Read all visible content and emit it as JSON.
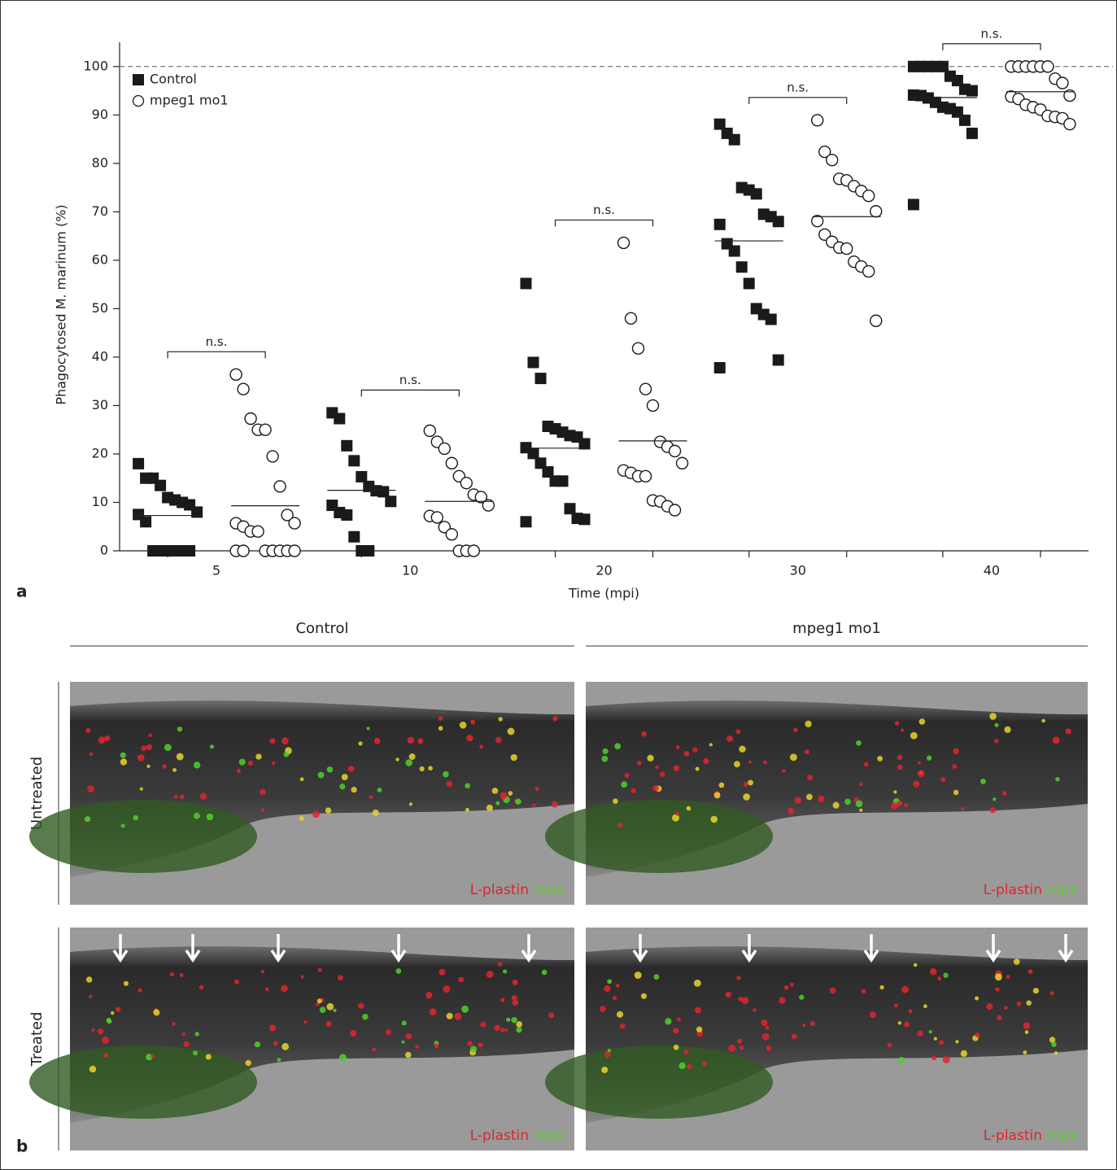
{
  "chart_data": {
    "type": "strip",
    "x_label": "Time (mpi)",
    "y_label": "Phagocytosed M. marinum (%)",
    "categories": [
      "5",
      "10",
      "20",
      "30",
      "40"
    ],
    "ylim": [
      0,
      105
    ],
    "yticks": [
      0,
      10,
      20,
      30,
      40,
      50,
      60,
      70,
      80,
      90,
      100
    ],
    "reference_line": 100,
    "annotations": [
      "n.s.",
      "n.s.",
      "n.s.",
      "n.s.",
      "n.s."
    ],
    "legend": "top-left",
    "series": [
      {
        "name": "Control",
        "marker": "square",
        "color": "#1a1a1a",
        "values": [
          [
            18,
            15,
            15,
            13.5,
            11,
            10.5,
            10,
            9.5,
            8,
            7.5,
            6,
            0,
            0,
            0,
            0,
            0,
            0
          ],
          [
            28.5,
            27.3,
            21.7,
            18.6,
            15.3,
            13.3,
            12.4,
            12.2,
            10.2,
            9.4,
            7.9,
            7.4,
            2.9,
            0,
            0
          ],
          [
            55.2,
            38.9,
            35.6,
            25.7,
            25.2,
            24.5,
            23.8,
            23.5,
            22.1,
            21.3,
            20.1,
            18.1,
            16.3,
            14.4,
            14.4,
            8.7,
            6.7,
            6.5,
            6
          ],
          [
            88.1,
            86.2,
            84.9,
            75,
            74.5,
            73.7,
            69.5,
            69,
            68,
            67.4,
            63.4,
            61.9,
            58.6,
            55.2,
            50,
            48.8,
            47.8,
            39.4,
            37.8
          ],
          [
            100,
            100,
            100,
            100,
            100,
            98,
            97.1,
            95.3,
            95,
            94.1,
            94,
            93.5,
            92.6,
            91.6,
            91.3,
            90.6,
            88.9,
            86.2,
            71.5
          ]
        ],
        "means": [
          7.3,
          12.5,
          21.2,
          64,
          93.6
        ]
      },
      {
        "name": "mpeg1 mo1",
        "marker": "circle",
        "color": "#1a1a1a",
        "values": [
          [
            36.4,
            33.4,
            27.3,
            25,
            25,
            19.5,
            13.3,
            7.4,
            5.7,
            5.7,
            5,
            4,
            4,
            0,
            0,
            0,
            0,
            0,
            0,
            0
          ],
          [
            24.8,
            22.5,
            21.1,
            18.1,
            15.4,
            14,
            11.6,
            11.1,
            9.4,
            7.2,
            6.9,
            4.9,
            3.4,
            0,
            0,
            0
          ],
          [
            63.6,
            48,
            41.8,
            33.4,
            30,
            22.5,
            21.5,
            20.6,
            18.1,
            16.6,
            16.1,
            15.4,
            15.4,
            10.4,
            10.2,
            9.2,
            8.4
          ],
          [
            88.9,
            82.4,
            80.7,
            76.8,
            76.5,
            75.3,
            74.3,
            73.3,
            70.1,
            68.1,
            65.3,
            63.8,
            62.6,
            62.4,
            59.7,
            58.7,
            57.7,
            47.5
          ],
          [
            100,
            100,
            100,
            100,
            100,
            100,
            97.5,
            96.6,
            94,
            93.8,
            93.3,
            92.1,
            91.6,
            91.1,
            89.8,
            89.6,
            89.3,
            88.1
          ]
        ],
        "means": [
          9.3,
          10.2,
          22.7,
          69,
          94.8
        ]
      }
    ]
  },
  "panel_labels": [
    "a",
    "b"
  ],
  "panel_b": {
    "columns": [
      "Control",
      "mpeg1 mo1"
    ],
    "rows": [
      "Untreated",
      "Treated"
    ],
    "channel_labels": [
      "L-plastin",
      "mpx"
    ]
  }
}
